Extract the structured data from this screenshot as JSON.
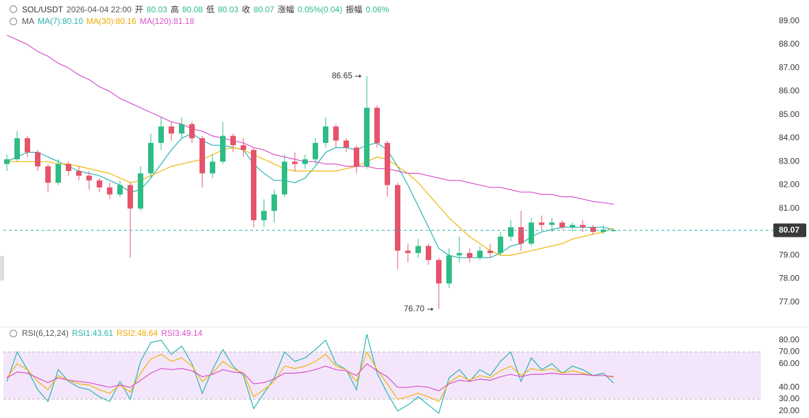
{
  "chart_data": {
    "type": "candlestick",
    "symbol": "SOL/USDT",
    "time": "2026-04-04 22:00",
    "open_label": "开",
    "open": "80.03",
    "high_label": "高",
    "high": "80.08",
    "low_label": "低",
    "low": "80.03",
    "close_label": "收",
    "close": "80.07",
    "change_label": "涨幅",
    "change": "0.05%(0.04)",
    "amplitude_label": "振幅",
    "amplitude": "0.06%",
    "ma_label": "MA",
    "ma_legend": [
      "MA(7):80.10",
      "MA(30):80.16",
      "MA(120):81.18"
    ],
    "up_color": "#2ebd85",
    "down_color": "#e5546a",
    "ylim": [
      76.0,
      89.9
    ],
    "yticks": [
      {
        "value": 77,
        "label": "77.00"
      },
      {
        "value": 78,
        "label": "78.00"
      },
      {
        "value": 79,
        "label": "79.00"
      },
      {
        "value": 80,
        "label": "80.00"
      },
      {
        "value": 81,
        "label": "81.00"
      },
      {
        "value": 82,
        "label": "82.00"
      },
      {
        "value": 83,
        "label": "83.00"
      },
      {
        "value": 84,
        "label": "84.00"
      },
      {
        "value": 85,
        "label": "85.00"
      },
      {
        "value": 86,
        "label": "86.00"
      },
      {
        "value": 87,
        "label": "87.00"
      },
      {
        "value": 88,
        "label": "88.00"
      },
      {
        "value": 89,
        "label": "89.00"
      }
    ],
    "last_price": {
      "value": 80.07,
      "label": "80.07"
    },
    "annotations": [
      {
        "index": 35,
        "value": 86.65,
        "label": "86.65"
      },
      {
        "index": 42,
        "value": 76.7,
        "label": "76.70"
      }
    ],
    "ohlc": [
      [
        82.9,
        83.3,
        82.6,
        83.1
      ],
      [
        83.1,
        84.3,
        83.0,
        84.0
      ],
      [
        84.0,
        84.1,
        83.2,
        83.4
      ],
      [
        83.4,
        83.5,
        82.6,
        82.8
      ],
      [
        82.8,
        82.9,
        81.7,
        82.1
      ],
      [
        82.1,
        83.1,
        82.0,
        82.9
      ],
      [
        82.9,
        83.0,
        82.4,
        82.6
      ],
      [
        82.6,
        82.8,
        82.2,
        82.4
      ],
      [
        82.4,
        82.6,
        81.8,
        82.2
      ],
      [
        82.2,
        82.3,
        81.7,
        81.9
      ],
      [
        81.9,
        82.1,
        81.4,
        81.6
      ],
      [
        81.6,
        82.2,
        81.5,
        82.0
      ],
      [
        82.0,
        82.1,
        78.9,
        81.0
      ],
      [
        81.0,
        82.8,
        80.9,
        82.5
      ],
      [
        82.5,
        84.2,
        82.3,
        83.8
      ],
      [
        83.8,
        84.9,
        83.5,
        84.5
      ],
      [
        84.5,
        84.7,
        83.9,
        84.2
      ],
      [
        84.2,
        84.9,
        84.0,
        84.6
      ],
      [
        84.6,
        84.7,
        83.8,
        84.0
      ],
      [
        84.0,
        84.1,
        81.9,
        82.5
      ],
      [
        82.5,
        83.3,
        82.3,
        83.0
      ],
      [
        83.0,
        84.7,
        82.9,
        84.1
      ],
      [
        84.1,
        84.2,
        83.4,
        83.7
      ],
      [
        83.7,
        84.0,
        83.2,
        83.5
      ],
      [
        83.5,
        83.6,
        80.2,
        80.5
      ],
      [
        80.5,
        81.4,
        80.2,
        80.9
      ],
      [
        80.9,
        81.8,
        80.4,
        81.6
      ],
      [
        81.6,
        83.3,
        81.5,
        83.0
      ],
      [
        83.0,
        83.4,
        82.6,
        82.9
      ],
      [
        82.9,
        83.3,
        82.7,
        83.1
      ],
      [
        83.1,
        84.0,
        82.9,
        83.8
      ],
      [
        83.8,
        84.9,
        83.6,
        84.5
      ],
      [
        84.5,
        84.6,
        83.6,
        83.9
      ],
      [
        83.9,
        84.0,
        83.4,
        83.6
      ],
      [
        83.6,
        83.7,
        82.5,
        82.8
      ],
      [
        82.8,
        86.65,
        82.7,
        85.3
      ],
      [
        85.3,
        85.4,
        83.6,
        83.8
      ],
      [
        83.8,
        83.9,
        81.5,
        82.0
      ],
      [
        82.0,
        82.1,
        78.4,
        79.2
      ],
      [
        79.2,
        79.5,
        78.7,
        79.1
      ],
      [
        79.1,
        79.7,
        78.9,
        79.4
      ],
      [
        79.4,
        79.5,
        78.6,
        78.8
      ],
      [
        78.8,
        78.9,
        76.7,
        77.8
      ],
      [
        77.8,
        79.3,
        77.6,
        79.0
      ],
      [
        79.0,
        79.8,
        78.7,
        79.1
      ],
      [
        79.1,
        79.3,
        78.7,
        78.9
      ],
      [
        78.9,
        79.4,
        78.8,
        79.2
      ],
      [
        79.2,
        79.5,
        78.9,
        79.1
      ],
      [
        79.1,
        80.0,
        79.0,
        79.8
      ],
      [
        79.8,
        80.5,
        79.6,
        80.2
      ],
      [
        80.2,
        80.9,
        79.2,
        79.5
      ],
      [
        79.5,
        80.6,
        79.4,
        80.4
      ],
      [
        80.4,
        80.7,
        80.1,
        80.3
      ],
      [
        80.3,
        80.6,
        80.0,
        80.4
      ],
      [
        80.4,
        80.5,
        80.1,
        80.2
      ],
      [
        80.2,
        80.4,
        80.0,
        80.3
      ],
      [
        80.3,
        80.5,
        80.0,
        80.2
      ],
      [
        80.2,
        80.3,
        79.9,
        80.0
      ],
      [
        80.0,
        80.3,
        79.9,
        80.1
      ],
      [
        80.03,
        80.08,
        80.03,
        80.07
      ]
    ],
    "series": [
      {
        "name": "MA(7)",
        "color": "#26b3b0",
        "values": [
          83.0,
          83.2,
          83.4,
          83.4,
          83.2,
          83.0,
          82.8,
          82.6,
          82.5,
          82.4,
          82.2,
          82.0,
          81.7,
          81.8,
          82.3,
          82.9,
          83.5,
          84.0,
          84.2,
          83.9,
          83.7,
          83.7,
          83.6,
          83.5,
          82.9,
          82.5,
          82.2,
          82.2,
          82.1,
          82.3,
          82.8,
          83.4,
          83.6,
          83.6,
          83.5,
          83.7,
          83.8,
          83.5,
          82.8,
          82.0,
          81.1,
          80.2,
          79.3,
          79.0,
          78.9,
          78.9,
          78.9,
          78.9,
          79.1,
          79.4,
          79.5,
          79.8,
          80.0,
          80.1,
          80.2,
          80.2,
          80.2,
          80.2,
          80.2,
          80.1
        ]
      },
      {
        "name": "MA(30)",
        "color": "#f0b400",
        "values": [
          83.0,
          83.0,
          83.0,
          83.0,
          83.0,
          82.9,
          82.9,
          82.8,
          82.7,
          82.6,
          82.5,
          82.3,
          82.1,
          82.2,
          82.4,
          82.6,
          82.8,
          82.9,
          83.0,
          83.1,
          83.3,
          83.5,
          83.6,
          83.5,
          83.3,
          83.1,
          82.9,
          82.7,
          82.6,
          82.6,
          82.6,
          82.6,
          82.6,
          82.7,
          82.8,
          83.0,
          83.2,
          83.1,
          82.8,
          82.5,
          82.1,
          81.6,
          81.1,
          80.6,
          80.2,
          79.8,
          79.5,
          79.2,
          79.0,
          79.0,
          79.1,
          79.2,
          79.3,
          79.4,
          79.5,
          79.7,
          79.8,
          79.9,
          80.0,
          80.16
        ]
      },
      {
        "name": "MA(120)",
        "color": "#d94fc8",
        "values": [
          88.4,
          88.2,
          88.0,
          87.7,
          87.5,
          87.2,
          87.0,
          86.7,
          86.5,
          86.2,
          86.0,
          85.7,
          85.5,
          85.3,
          85.1,
          84.9,
          84.7,
          84.6,
          84.4,
          84.3,
          84.1,
          84.0,
          83.9,
          83.8,
          83.6,
          83.5,
          83.3,
          83.2,
          83.1,
          83.0,
          83.0,
          82.9,
          82.9,
          82.8,
          82.8,
          82.8,
          82.7,
          82.7,
          82.6,
          82.5,
          82.5,
          82.4,
          82.3,
          82.2,
          82.2,
          82.1,
          82.0,
          81.9,
          81.9,
          81.8,
          81.7,
          81.7,
          81.6,
          81.6,
          81.5,
          81.5,
          81.4,
          81.3,
          81.25,
          81.18
        ]
      }
    ],
    "rsi": {
      "label": "RSI(6,12,24)",
      "legend": [
        "RSI1:43.61",
        "RSI2:48.64",
        "RSI3:49.14"
      ],
      "ylim": [
        14,
        90
      ],
      "yticks": [
        {
          "value": 20,
          "label": "20.00"
        },
        {
          "value": 30,
          "label": "30.00"
        },
        {
          "value": 40,
          "label": "40.00"
        },
        {
          "value": 60,
          "label": "60.00"
        },
        {
          "value": 70,
          "label": "70.00"
        },
        {
          "value": 80,
          "label": "80.00"
        }
      ],
      "band": [
        30,
        70
      ],
      "band_color": "#f3e6fb",
      "series": [
        {
          "name": "RSI1",
          "color": "#26b3b0",
          "values": [
            45,
            70,
            55,
            38,
            28,
            55,
            45,
            40,
            38,
            32,
            28,
            45,
            30,
            62,
            78,
            80,
            68,
            75,
            60,
            35,
            55,
            72,
            58,
            50,
            22,
            35,
            48,
            70,
            62,
            65,
            72,
            80,
            60,
            55,
            38,
            85,
            52,
            35,
            20,
            25,
            32,
            25,
            18,
            48,
            55,
            45,
            55,
            50,
            62,
            70,
            45,
            65,
            55,
            60,
            52,
            58,
            55,
            50,
            52,
            43.61
          ]
        },
        {
          "name": "RSI2",
          "color": "#f0b400",
          "values": [
            48,
            60,
            55,
            45,
            38,
            50,
            46,
            43,
            42,
            38,
            35,
            42,
            36,
            52,
            64,
            68,
            62,
            65,
            58,
            45,
            52,
            62,
            56,
            52,
            32,
            38,
            45,
            58,
            56,
            58,
            62,
            68,
            58,
            55,
            45,
            70,
            55,
            43,
            30,
            32,
            35,
            32,
            28,
            44,
            50,
            46,
            50,
            48,
            54,
            58,
            50,
            56,
            54,
            56,
            52,
            54,
            52,
            50,
            50,
            48.64
          ]
        },
        {
          "name": "RSI3",
          "color": "#d94fc8",
          "values": [
            48,
            53,
            52,
            48,
            44,
            48,
            46,
            45,
            44,
            42,
            40,
            42,
            40,
            46,
            52,
            56,
            55,
            56,
            54,
            49,
            51,
            55,
            53,
            52,
            43,
            44,
            47,
            52,
            52,
            53,
            55,
            58,
            55,
            54,
            50,
            60,
            54,
            49,
            40,
            40,
            41,
            40,
            37,
            43,
            46,
            45,
            47,
            46,
            49,
            51,
            49,
            51,
            51,
            52,
            51,
            51,
            51,
            50,
            50,
            49.14
          ]
        }
      ]
    }
  }
}
